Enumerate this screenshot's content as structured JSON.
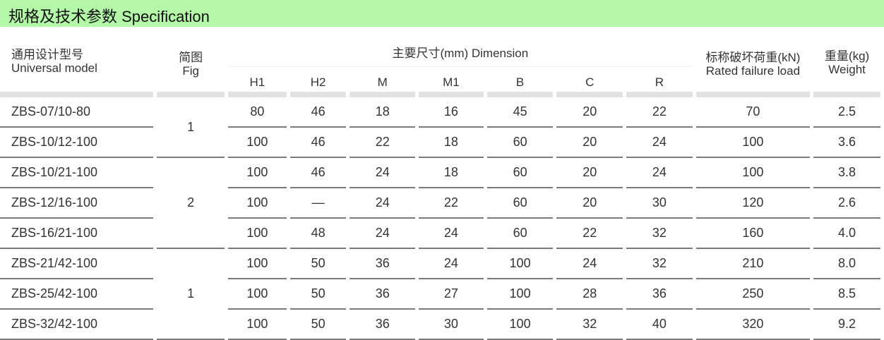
{
  "title": "规格及技术参数  Specification",
  "headers": {
    "model_cn": "通用设计型号",
    "model_en": "Universal  model",
    "fig_cn": "简图",
    "fig_en": "Fig",
    "dimension": "主要尺寸(mm)  Dimension",
    "dims": [
      "H1",
      "H2",
      "M",
      "M1",
      "B",
      "C",
      "R"
    ],
    "load_cn": "标称破坏荷重(kN)",
    "load_en": "Rated failure load",
    "weight_cn": "重量(kg)",
    "weight_en": "Weight"
  },
  "rows": [
    {
      "model": "ZBS-07/10-80",
      "fig": "1",
      "d": [
        "80",
        "46",
        "18",
        "16",
        "45",
        "20",
        "22"
      ],
      "load": "70",
      "weight": "2.5"
    },
    {
      "model": "ZBS-10/12-100",
      "d": [
        "100",
        "46",
        "22",
        "18",
        "60",
        "20",
        "24"
      ],
      "load": "100",
      "weight": "3.6"
    },
    {
      "model": "ZBS-10/21-100",
      "fig": "2",
      "d": [
        "100",
        "46",
        "24",
        "18",
        "60",
        "20",
        "24"
      ],
      "load": "100",
      "weight": "3.8"
    },
    {
      "model": "ZBS-12/16-100",
      "d": [
        "100",
        "—",
        "24",
        "22",
        "60",
        "20",
        "30"
      ],
      "load": "120",
      "weight": "2.6"
    },
    {
      "model": "ZBS-16/21-100",
      "d": [
        "100",
        "48",
        "24",
        "24",
        "60",
        "22",
        "32"
      ],
      "load": "160",
      "weight": "4.0"
    },
    {
      "model": "ZBS-21/42-100",
      "fig": "1",
      "d": [
        "100",
        "50",
        "36",
        "24",
        "100",
        "24",
        "32"
      ],
      "load": "210",
      "weight": "8.0"
    },
    {
      "model": "ZBS-25/42-100",
      "d": [
        "100",
        "50",
        "36",
        "27",
        "100",
        "28",
        "36"
      ],
      "load": "250",
      "weight": "8.5"
    },
    {
      "model": "ZBS-32/42-100",
      "d": [
        "100",
        "50",
        "36",
        "30",
        "100",
        "32",
        "40"
      ],
      "load": "320",
      "weight": "9.2"
    }
  ],
  "colors": {
    "title_bar": "#b4f7a8"
  }
}
